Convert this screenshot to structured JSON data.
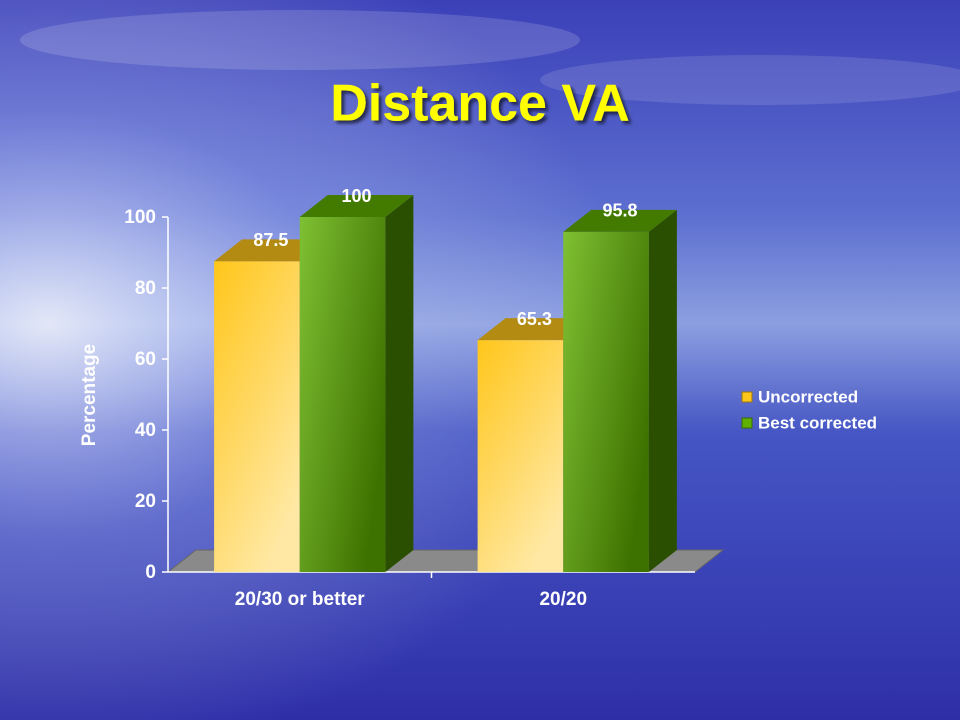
{
  "chart_data": {
    "type": "bar3d",
    "title": "Distance VA",
    "y_label": "Percentage",
    "categories": [
      "20/30 or better",
      "20/20"
    ],
    "series": [
      {
        "name": "Uncorrected",
        "color": "#ffc61a",
        "values": [
          87.5,
          65.3
        ]
      },
      {
        "name": "Best corrected",
        "color": "#5fb000",
        "values": [
          100,
          95.8
        ]
      }
    ],
    "ylim": [
      0,
      100
    ],
    "yticks": [
      0,
      20,
      40,
      60,
      80,
      100
    ],
    "legend": "right"
  }
}
